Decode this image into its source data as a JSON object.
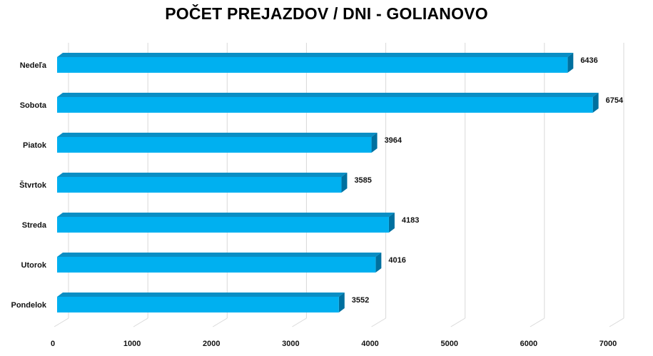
{
  "chart_data": {
    "type": "bar",
    "orientation": "horizontal",
    "title": "POČET PREJAZDOV / DNI - GOLIANOVO",
    "categories": [
      "Nedeľa",
      "Sobota",
      "Piatok",
      "Štvrtok",
      "Streda",
      "Utorok",
      "Pondelok"
    ],
    "values": [
      6436,
      6754,
      3964,
      3585,
      4183,
      4016,
      3552
    ],
    "xlim": [
      0,
      7000
    ],
    "xticks": [
      "0",
      "1000",
      "2000",
      "3000",
      "4000",
      "5000",
      "6000",
      "7000"
    ],
    "grid": true,
    "legend": "none",
    "colors": {
      "bar_front": "#00b0f0",
      "bar_top": "#0a8ec4",
      "bar_side": "#00709f",
      "grid": "#d9d9d9"
    }
  }
}
